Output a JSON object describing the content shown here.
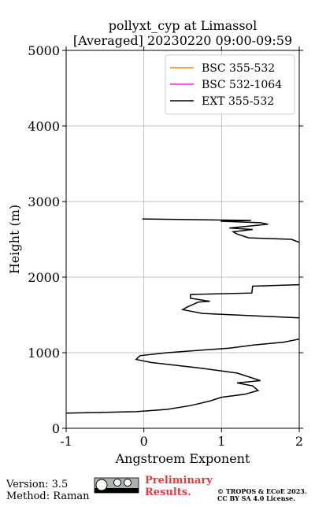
{
  "chart_data": {
    "type": "line",
    "title": "pollyxt_cyp at Limassol",
    "subtitle": "[Averaged] 20230220 09:00-09:59",
    "x_label": "Angstroem Exponent",
    "y_label": "Height (m)",
    "xlim": [
      -1,
      2
    ],
    "xticks": [
      -1,
      0,
      1,
      2
    ],
    "ylim": [
      0,
      5000
    ],
    "yticks": [
      0,
      1000,
      2000,
      3000,
      4000,
      5000
    ],
    "grid": true,
    "legend": "upper right",
    "heights": [
      2770,
      2750,
      2740,
      2720,
      2700,
      2680,
      2650,
      2630,
      2600,
      2570,
      2520,
      2500,
      2460,
      2000,
      1900,
      1880,
      1790,
      1770,
      1720,
      1680,
      1670,
      1600,
      1570,
      1520,
      1460,
      1300,
      1180,
      1140,
      1100,
      1060,
      1000,
      960,
      910,
      870,
      800,
      730,
      630,
      600,
      560,
      500,
      450,
      410,
      360,
      300,
      250,
      220,
      200
    ],
    "series": [
      {
        "name": "BSC 355-532",
        "color": "#ff7f0e",
        "values": [
          null,
          null,
          null,
          null,
          null,
          null,
          null,
          null,
          null,
          null,
          null,
          null,
          null,
          null,
          null,
          null,
          null,
          null,
          null,
          null,
          null,
          null,
          null,
          null,
          null,
          null,
          null,
          null,
          null,
          null,
          null,
          null,
          null,
          null,
          null,
          null,
          null,
          null,
          null,
          null,
          null,
          null,
          null,
          null,
          null,
          null,
          null
        ]
      },
      {
        "name": "BSC 532-1064",
        "color": "#ff1ee8",
        "values": [
          null,
          null,
          null,
          null,
          null,
          null,
          null,
          null,
          null,
          null,
          null,
          null,
          null,
          null,
          null,
          null,
          null,
          null,
          null,
          null,
          null,
          null,
          null,
          null,
          null,
          null,
          null,
          null,
          null,
          null,
          null,
          null,
          null,
          null,
          null,
          null,
          null,
          null,
          null,
          null,
          null,
          null,
          null,
          null,
          null,
          null,
          null
        ]
      },
      {
        "name": "EXT 355-532",
        "color": "#000000",
        "values": [
          -0.02,
          1.38,
          0.99,
          1.5,
          1.6,
          1.4,
          1.1,
          1.4,
          1.15,
          1.2,
          1.35,
          1.9,
          2.0,
          null,
          2.0,
          1.4,
          1.39,
          0.6,
          0.6,
          0.85,
          0.7,
          0.55,
          0.5,
          0.75,
          2.0,
          null,
          2.0,
          1.8,
          1.4,
          1.1,
          0.3,
          -0.05,
          -0.1,
          0.1,
          0.7,
          1.2,
          1.5,
          1.2,
          1.4,
          1.47,
          1.3,
          1.0,
          0.85,
          0.6,
          0.3,
          -0.1,
          -1.0
        ]
      }
    ]
  },
  "footer": {
    "version": "Version: 3.5",
    "method": "Method: Raman",
    "preliminary": "Preliminary",
    "results": "Results.",
    "copyright": "© TROPOS & ECoE 2023.",
    "license": "CC BY SA 4.0 License."
  }
}
